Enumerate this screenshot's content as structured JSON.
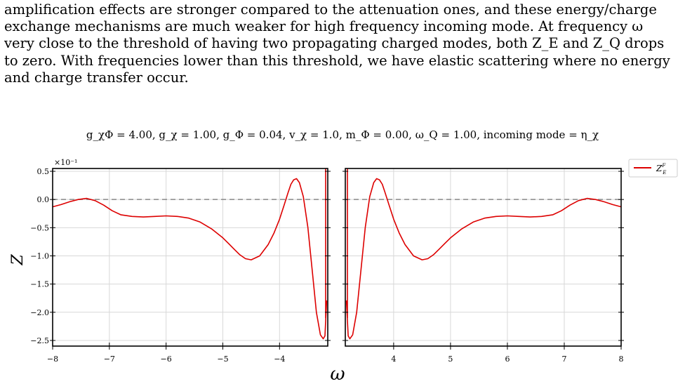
{
  "paragraph": {
    "lines": [
      "amplification effects are stronger compared to the attenuation ones, and these energy/charge",
      "exchange mechanisms are much weaker for high frequency incoming mode.  At frequency ω",
      "very close to the threshold of having two propagating charged modes, both Z_E and Z_Q drops",
      "to zero. With frequencies lower than this threshold, we have elastic scattering where no energy",
      "and charge transfer occur."
    ]
  },
  "figure": {
    "caption": "g_χΦ = 4.00,  g_χ = 1.00,  g_Φ = 0.04,  v_χ = 1.0,  m_Φ = 0.00,  ω_Q = 1.00,  incoming mode = η_χ"
  },
  "chart_data": {
    "type": "line",
    "title": "",
    "xlabel": "ω",
    "ylabel": "Z",
    "y_scale_label": "×10⁻¹",
    "ylim": [
      -2.6,
      0.55
    ],
    "y_ticks": [
      "0.5",
      "0.0",
      "−0.5",
      "−1.0",
      "−1.5",
      "−2.0",
      "−2.5"
    ],
    "y_tick_values": [
      0.5,
      0.0,
      -0.5,
      -1.0,
      -1.5,
      -2.0,
      -2.5
    ],
    "grid": true,
    "legend_position": "top-right",
    "reference_line": {
      "y": 0.0,
      "style": "dashed",
      "color": "#888888"
    },
    "panels": [
      {
        "name": "left",
        "xlim": [
          -8,
          -3.15
        ],
        "x_ticks": [
          "−8",
          "−7",
          "−6",
          "−5",
          "−4"
        ],
        "x_tick_values": [
          -8,
          -7,
          -6,
          -5,
          -4
        ]
      },
      {
        "name": "right",
        "xlim": [
          3.15,
          8
        ],
        "x_ticks": [
          "4",
          "5",
          "6",
          "7",
          "8"
        ],
        "x_tick_values": [
          4,
          5,
          6,
          7,
          8
        ]
      }
    ],
    "series": [
      {
        "name": "Z_E^F",
        "color": "#dd0000",
        "x": [
          3.17,
          3.2,
          3.23,
          3.28,
          3.35,
          3.42,
          3.5,
          3.58,
          3.65,
          3.7,
          3.75,
          3.8,
          3.85,
          3.92,
          4.0,
          4.1,
          4.2,
          4.35,
          4.5,
          4.6,
          4.7,
          4.8,
          4.9,
          5.0,
          5.2,
          5.4,
          5.6,
          5.8,
          6.0,
          6.2,
          6.4,
          6.6,
          6.8,
          6.95,
          7.1,
          7.25,
          7.4,
          7.55,
          7.7,
          7.85,
          8.0
        ],
        "y": [
          -1.8,
          -2.42,
          -2.47,
          -2.4,
          -2.0,
          -1.3,
          -0.5,
          0.05,
          0.3,
          0.37,
          0.35,
          0.27,
          0.12,
          -0.1,
          -0.35,
          -0.6,
          -0.8,
          -1.0,
          -1.07,
          -1.05,
          -0.98,
          -0.88,
          -0.78,
          -0.68,
          -0.52,
          -0.4,
          -0.33,
          -0.3,
          -0.29,
          -0.3,
          -0.31,
          -0.3,
          -0.27,
          -0.2,
          -0.1,
          -0.02,
          0.02,
          0.0,
          -0.04,
          -0.09,
          -0.13
        ]
      }
    ]
  },
  "legend": {
    "label_main": "Z",
    "label_sub": "E",
    "label_sup": "F"
  }
}
